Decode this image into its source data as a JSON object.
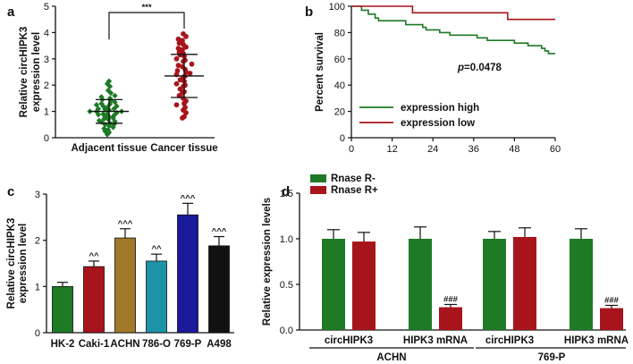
{
  "panels": {
    "a": "a",
    "b": "b",
    "c": "c",
    "d": "d"
  },
  "chart_data": [
    {
      "panel": "a",
      "type": "scatter",
      "ylabel": "Relative circHIPK3 expression level",
      "ylim": [
        0,
        5
      ],
      "yticks": [
        "0",
        "1",
        "2",
        "3",
        "4",
        "5"
      ],
      "categories": [
        "Adjacent tissue",
        "Cancer tissue"
      ],
      "colors": [
        "#1e7a25",
        "#a8141b"
      ],
      "means": [
        1.0,
        2.35
      ],
      "sd": [
        0.45,
        0.82
      ],
      "significance": "***",
      "points": [
        [
          0.12,
          0.2,
          0.25,
          0.3,
          0.35,
          0.4,
          0.45,
          0.5,
          0.5,
          0.55,
          0.6,
          0.62,
          0.65,
          0.7,
          0.72,
          0.75,
          0.8,
          0.8,
          0.85,
          0.88,
          0.9,
          0.9,
          0.95,
          1.0,
          1.0,
          1.0,
          1.05,
          1.08,
          1.1,
          1.1,
          1.15,
          1.2,
          1.2,
          1.25,
          1.28,
          1.3,
          1.35,
          1.4,
          1.45,
          1.5,
          1.55,
          1.6,
          1.7,
          1.8,
          1.95,
          2.05,
          2.15
        ],
        [
          0.75,
          0.8,
          0.95,
          1.05,
          1.15,
          1.25,
          1.3,
          1.4,
          1.5,
          1.6,
          1.7,
          1.75,
          1.85,
          1.95,
          2.0,
          2.05,
          2.15,
          2.2,
          2.3,
          2.35,
          2.4,
          2.45,
          2.5,
          2.55,
          2.6,
          2.7,
          2.75,
          2.8,
          2.9,
          2.95,
          3.0,
          3.1,
          3.15,
          3.2,
          3.25,
          3.35,
          3.4,
          3.45,
          3.55,
          3.6,
          3.7,
          3.75,
          3.85,
          3.95
        ]
      ]
    },
    {
      "panel": "b",
      "type": "line",
      "xlabel": "",
      "ylabel": "Percent survival",
      "xlim": [
        0,
        60
      ],
      "ylim": [
        0,
        100
      ],
      "xticks": [
        "0",
        "12",
        "24",
        "36",
        "48",
        "60"
      ],
      "yticks": [
        "0",
        "20",
        "40",
        "60",
        "80",
        "100"
      ],
      "annotation_p": "p",
      "annotation_value": "=0.0478",
      "series": [
        {
          "name": "expression high",
          "color": "#1e7a25",
          "steps": [
            [
              0,
              100
            ],
            [
              3,
              97
            ],
            [
              5,
              94
            ],
            [
              7,
              91
            ],
            [
              8,
              89
            ],
            [
              15,
              89
            ],
            [
              16,
              86
            ],
            [
              20,
              86
            ],
            [
              21,
              84
            ],
            [
              22,
              82
            ],
            [
              25,
              82
            ],
            [
              26,
              80
            ],
            [
              28,
              80
            ],
            [
              29,
              78
            ],
            [
              36,
              78
            ],
            [
              37,
              76
            ],
            [
              39,
              76
            ],
            [
              40,
              74
            ],
            [
              47,
              74
            ],
            [
              48,
              72
            ],
            [
              51,
              72
            ],
            [
              52,
              70
            ],
            [
              55,
              70
            ],
            [
              56,
              68
            ],
            [
              57,
              66
            ],
            [
              58,
              64
            ],
            [
              60,
              64
            ]
          ]
        },
        {
          "name": "expression low",
          "color": "#a8141b",
          "steps": [
            [
              0,
              100
            ],
            [
              17,
              100
            ],
            [
              18,
              95
            ],
            [
              45,
              95
            ],
            [
              46,
              90
            ],
            [
              60,
              90
            ]
          ]
        }
      ]
    },
    {
      "panel": "c",
      "type": "bar",
      "ylabel": "Relative circHIPK3 expression level",
      "ylim": [
        0,
        3
      ],
      "yticks": [
        "0",
        "1",
        "2",
        "3"
      ],
      "categories": [
        "HK-2",
        "Caki-1",
        "ACHN",
        "786-O",
        "769-P",
        "A498"
      ],
      "values": [
        1.0,
        1.43,
        2.05,
        1.55,
        2.55,
        1.88
      ],
      "errors": [
        0.09,
        0.12,
        0.2,
        0.15,
        0.25,
        0.2
      ],
      "colors": [
        "#1e7a25",
        "#a8141b",
        "#a07a2a",
        "#1e93a8",
        "#1a1a9a",
        "#111111"
      ],
      "annotations": [
        "",
        "^^",
        "^^^",
        "^^",
        "^^^",
        "^^^"
      ]
    },
    {
      "panel": "d",
      "type": "bar",
      "ylabel": "Relative expression levels",
      "ylim": [
        0,
        1.5
      ],
      "yticks": [
        "0.0",
        "0.5",
        "1.0",
        "1.5"
      ],
      "categories": [
        "circHIPK3",
        "HIPK3 mRNA",
        "circHIPK3",
        "HIPK3 mRNA"
      ],
      "groups": [
        "ACHN",
        "769-P"
      ],
      "series": [
        {
          "name": "Rnase R-",
          "color": "#1e7a25",
          "values": [
            1.0,
            1.0,
            1.0,
            1.0
          ],
          "errors": [
            0.1,
            0.13,
            0.08,
            0.11
          ]
        },
        {
          "name": "Rnase R+",
          "color": "#a8141b",
          "values": [
            0.97,
            0.25,
            1.02,
            0.24
          ],
          "errors": [
            0.1,
            0.03,
            0.1,
            0.03
          ]
        }
      ],
      "annotations": [
        "",
        "###",
        "",
        "###"
      ]
    }
  ]
}
